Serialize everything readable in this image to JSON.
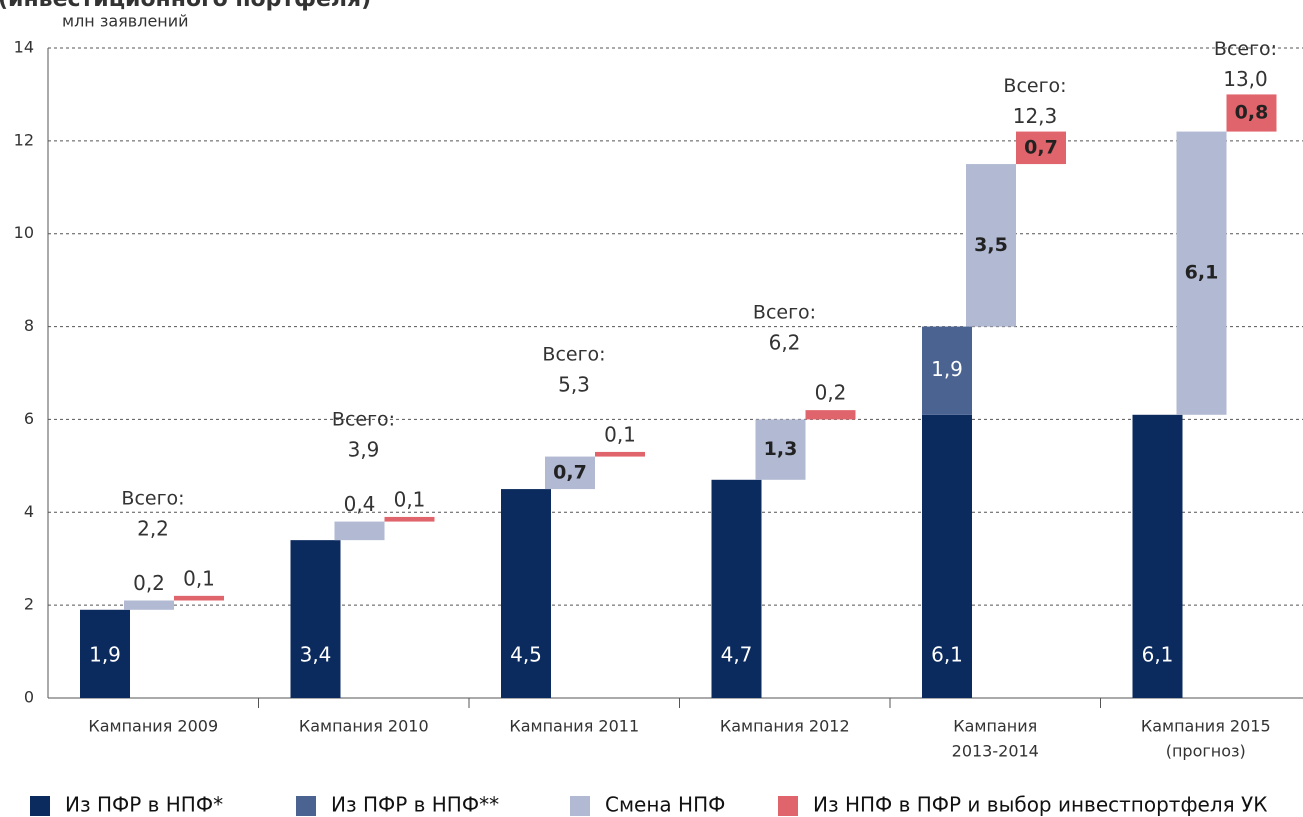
{
  "chart_data": {
    "type": "waterfall",
    "title": "(инвестиционного портфеля)",
    "y_label": "млн заявлений",
    "categories": [
      [
        "Кампания 2009"
      ],
      [
        "Кампания 2010"
      ],
      [
        "Кампания 2011"
      ],
      [
        "Кампания 2012"
      ],
      [
        "Кампания",
        "2013-2014"
      ],
      [
        "Кампания 2015",
        "(прогноз)"
      ]
    ],
    "series": [
      {
        "name": "Из ПФР в НПФ*",
        "color": "#0b2b5f",
        "values": [
          1.9,
          3.4,
          4.5,
          4.7,
          6.1,
          6.1
        ],
        "value_labels": [
          "1,9",
          "3,4",
          "4,5",
          "4,7",
          "6,1",
          "6,1"
        ]
      },
      {
        "name": "Из ПФР в НПФ**",
        "color": "#4a6391",
        "values": [
          null,
          null,
          null,
          null,
          1.9,
          null
        ],
        "value_labels": [
          null,
          null,
          null,
          null,
          "1,9",
          null
        ]
      },
      {
        "name": "Смена НПФ",
        "color": "#b1b9d3",
        "values": [
          0.2,
          0.4,
          0.7,
          1.3,
          3.5,
          6.1
        ],
        "value_labels": [
          "0,2",
          "0,4",
          "0,7",
          "1,3",
          "3,5",
          "6,1"
        ]
      },
      {
        "name": "Из НПФ в ПФР и выбор инвестпортфеля УК",
        "color": "#e0646b",
        "values": [
          0.1,
          0.1,
          0.1,
          0.2,
          0.7,
          0.8
        ],
        "value_labels": [
          "0,1",
          "0,1",
          "0,1",
          "0,2",
          "0,7",
          "0,8"
        ]
      }
    ],
    "total_prefix": "Всего:",
    "totals": [
      2.2,
      3.9,
      5.3,
      6.2,
      12.3,
      13.0
    ],
    "total_labels": [
      "2,2",
      "3,9",
      "5,3",
      "6,2",
      "12,3",
      "13,0"
    ],
    "ylim": [
      0,
      14
    ],
    "yticks": [
      0,
      2,
      4,
      6,
      8,
      10,
      12,
      14
    ],
    "grid": true
  }
}
